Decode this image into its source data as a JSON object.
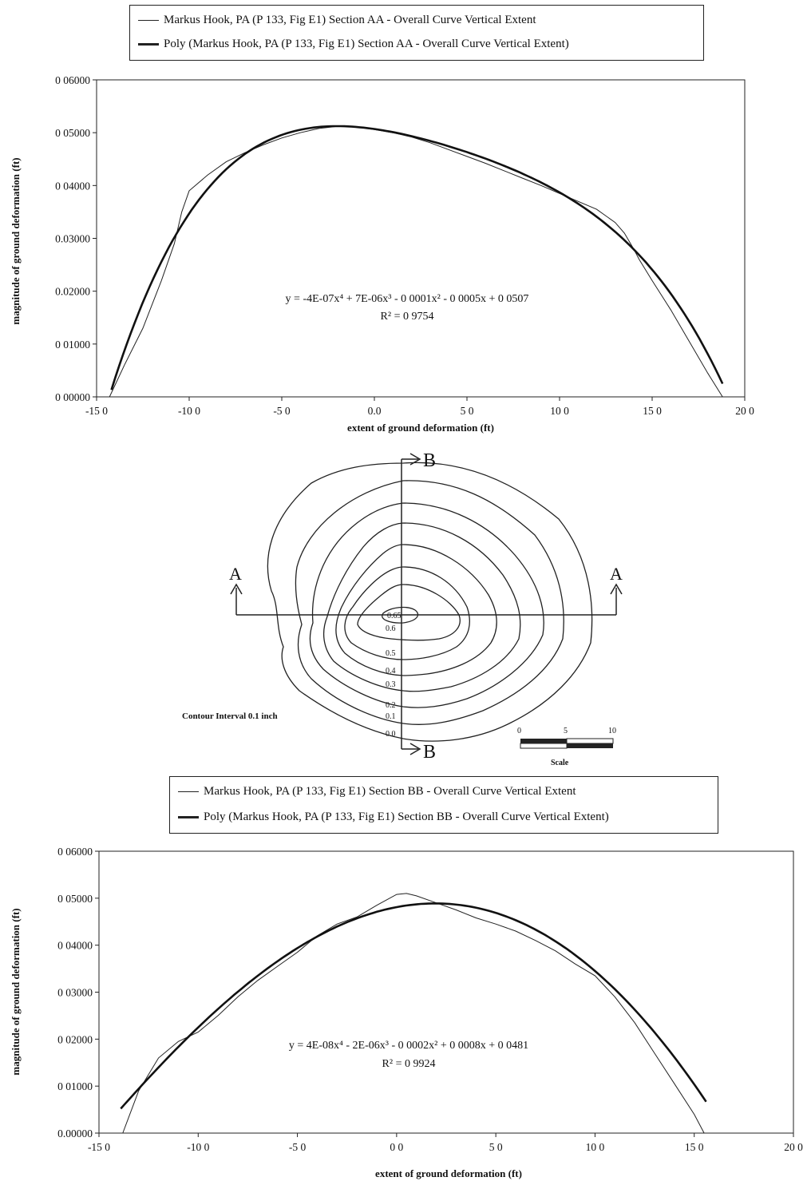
{
  "chart_data": [
    {
      "type": "line",
      "legend": [
        "Markus Hook, PA  (P 133, Fig  E1) Section AA - Overall Curve Vertical Extent",
        "Poly  (Markus Hook, PA  (P 133, Fig  E1) Section AA - Overall Curve Vertical Extent)"
      ],
      "equation": "y = -4E-07x⁴ + 7E-06x³ - 0 0001x² - 0 0005x + 0 0507",
      "r_squared": "R² = 0 9754",
      "xlabel": "extent of ground deformation (ft)",
      "ylabel": "magnitude of ground deformation (ft)",
      "x_ticks": [
        "-15 0",
        "-10 0",
        "-5 0",
        "0.0",
        "5 0",
        "10 0",
        "15 0",
        "20 0"
      ],
      "y_ticks": [
        "0 00000",
        "0 01000",
        "0.02000",
        "0.03000",
        "0 04000",
        "0 05000",
        "0 06000"
      ],
      "xlim": [
        -15,
        20
      ],
      "ylim": [
        0,
        0.06
      ],
      "series": [
        {
          "name": "Markus Hook, PA  (P 133, Fig  E1) Section AA - Overall Curve Vertical Extent",
          "x": [
            -14.3,
            -13.5,
            -12.5,
            -11.5,
            -10.8,
            -10.4,
            -10.0,
            -9.0,
            -8.0,
            -7.0,
            -6.0,
            -5.0,
            -4.0,
            -3.0,
            -2.0,
            -1.0,
            0.0,
            1.0,
            2.0,
            3.0,
            4.0,
            5.0,
            6.0,
            7.0,
            8.0,
            9.0,
            10.0,
            11.0,
            12.0,
            13.0,
            13.5,
            14.0,
            14.3,
            15.0,
            16.0,
            17.0,
            18.0,
            18.8
          ],
          "y": [
            0.0,
            0.006,
            0.013,
            0.022,
            0.029,
            0.035,
            0.039,
            0.042,
            0.0445,
            0.0462,
            0.0477,
            0.049,
            0.05,
            0.0508,
            0.0512,
            0.0511,
            0.0506,
            0.05,
            0.0492,
            0.0481,
            0.0468,
            0.0455,
            0.0442,
            0.0428,
            0.0414,
            0.04,
            0.0385,
            0.037,
            0.0355,
            0.033,
            0.031,
            0.028,
            0.026,
            0.022,
            0.0165,
            0.0105,
            0.0045,
            0.0
          ]
        },
        {
          "name": "Poly  (Markus Hook, PA  (P 133, Fig  E1) Section AA - Overall Curve Vertical Extent)",
          "equation_coefficients": [
            -4e-07,
            7e-06,
            -0.0001,
            -0.0005,
            0.0507
          ],
          "x_range": [
            -14.2,
            18.8
          ]
        }
      ]
    },
    {
      "type": "contour",
      "section_labels": [
        "A",
        "A",
        "B",
        "B"
      ],
      "contour_labels": [
        "0.6",
        "0.5",
        "0.4",
        "0.3",
        "0.2",
        "0.1",
        "0.0"
      ],
      "center_label": "0.65",
      "note": "Contour Interval 0.1 inch",
      "scale_ticks": [
        "0",
        "5",
        "10"
      ],
      "scale_label": "Scale"
    },
    {
      "type": "line",
      "legend": [
        "Markus Hook, PA  (P 133, Fig  E1) Section BB - Overall Curve Vertical Extent",
        "Poly  (Markus Hook, PA  (P 133, Fig  E1) Section BB - Overall Curve Vertical Extent)"
      ],
      "equation": "y = 4E-08x⁴ - 2E-06x³ - 0 0002x² + 0 0008x + 0 0481",
      "r_squared": "R² = 0 9924",
      "xlabel": "extent of ground deformation (ft)",
      "ylabel": "magnitude of ground deformation (ft)",
      "x_ticks": [
        "-15 0",
        "-10 0",
        "-5 0",
        "0 0",
        "5 0",
        "10 0",
        "15 0",
        "20 0"
      ],
      "y_ticks": [
        "0.00000",
        "0 01000",
        "0 02000",
        "0 03000",
        "0 04000",
        "0 05000",
        "0 06000"
      ],
      "xlim": [
        -15,
        20
      ],
      "ylim": [
        0,
        0.06
      ],
      "series": [
        {
          "name": "Markus Hook, PA  (P 133, Fig  E1) Section BB - Overall Curve Vertical Extent",
          "x": [
            -13.8,
            -13.0,
            -12.0,
            -11.0,
            -10.0,
            -9.0,
            -8.0,
            -7.0,
            -6.0,
            -5.0,
            -4.0,
            -3.0,
            -2.0,
            -1.0,
            0.0,
            0.5,
            1.0,
            2.0,
            3.0,
            4.0,
            5.0,
            6.0,
            7.0,
            8.0,
            9.0,
            10.0,
            11.0,
            12.0,
            13.0,
            14.0,
            15.0,
            15.5
          ],
          "y": [
            0.0,
            0.009,
            0.016,
            0.0195,
            0.0215,
            0.025,
            0.029,
            0.0325,
            0.0355,
            0.0385,
            0.042,
            0.0445,
            0.046,
            0.0485,
            0.0508,
            0.051,
            0.0505,
            0.049,
            0.0475,
            0.0458,
            0.0445,
            0.043,
            0.041,
            0.0388,
            0.036,
            0.0335,
            0.029,
            0.0235,
            0.017,
            0.0105,
            0.004,
            0.0
          ]
        },
        {
          "name": "Poly  (Markus Hook, PA  (P 133, Fig  E1) Section BB - Overall Curve Vertical Extent)",
          "equation_coefficients": [
            4e-08,
            -2e-06,
            -0.0002,
            0.0008,
            0.0481
          ],
          "x_range": [
            -13.9,
            15.6
          ]
        }
      ]
    }
  ]
}
